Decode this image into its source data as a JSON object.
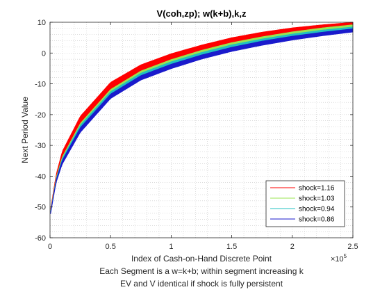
{
  "chart_data": {
    "type": "area",
    "title": "V(coh,zp); w(k+b),k,z",
    "xlabel_lines": [
      "Index of Cash-on-Hand Discrete Point",
      "Each Segment is a w=k+b; within segment increasing k",
      "EV and V identical if shock is fully persistent"
    ],
    "ylabel": "Next Period Value",
    "x_exponent_label": "×10",
    "x_exponent_power": "5",
    "xlim": [
      0,
      2.5
    ],
    "ylim": [
      -60,
      10
    ],
    "x_ticks": [
      0,
      0.5,
      1,
      1.5,
      2,
      2.5
    ],
    "x_tick_labels": [
      "0",
      "0.5",
      "1",
      "1.5",
      "2",
      "2.5"
    ],
    "y_ticks": [
      10,
      0,
      -10,
      -20,
      -30,
      -40,
      -50,
      -60
    ],
    "y_tick_labels": [
      "10",
      "0",
      "-10",
      "-20",
      "-30",
      "-40",
      "-50",
      "-60"
    ],
    "grid": "minor-dotted",
    "legend_position": "bottom-right",
    "series": [
      {
        "name": "shock=1.16",
        "color": "#ff0000",
        "x": [
          0.005,
          0.05,
          0.1,
          0.25,
          0.5,
          0.75,
          1.0,
          1.25,
          1.5,
          1.75,
          2.0,
          2.25,
          2.5
        ],
        "lower": [
          -51.5,
          -41.0,
          -34.5,
          -23.5,
          -12.5,
          -6.5,
          -2.8,
          0.3,
          2.8,
          4.8,
          6.4,
          7.8,
          8.8
        ],
        "upper": [
          -50.5,
          -39.5,
          -32.0,
          -20.5,
          -9.5,
          -3.8,
          -0.2,
          2.6,
          5.0,
          6.8,
          8.2,
          9.2,
          10.0
        ]
      },
      {
        "name": "shock=1.03",
        "color": "#99e550",
        "x": [
          0.005,
          0.05,
          0.1,
          0.25,
          0.5,
          0.75,
          1.0,
          1.25,
          1.5,
          1.75,
          2.0,
          2.25,
          2.5
        ],
        "lower": [
          -51.8,
          -41.5,
          -35.2,
          -24.5,
          -13.5,
          -7.5,
          -3.8,
          -0.7,
          1.8,
          3.8,
          5.5,
          6.9,
          8.0
        ],
        "upper": [
          -51.0,
          -40.5,
          -33.8,
          -22.8,
          -11.8,
          -5.8,
          -2.1,
          0.9,
          3.4,
          5.3,
          6.9,
          8.2,
          9.2
        ]
      },
      {
        "name": "shock=0.94",
        "color": "#20c0c0",
        "x": [
          0.005,
          0.05,
          0.1,
          0.25,
          0.5,
          0.75,
          1.0,
          1.25,
          1.5,
          1.75,
          2.0,
          2.25,
          2.5
        ],
        "lower": [
          -52.0,
          -41.8,
          -35.6,
          -25.0,
          -14.0,
          -8.0,
          -4.3,
          -1.2,
          1.3,
          3.3,
          5.0,
          6.4,
          7.5
        ],
        "upper": [
          -51.3,
          -40.9,
          -34.3,
          -23.4,
          -12.5,
          -6.5,
          -2.8,
          0.2,
          2.7,
          4.6,
          6.2,
          7.5,
          8.5
        ]
      },
      {
        "name": "shock=0.86",
        "color": "#1a1acc",
        "x": [
          0.005,
          0.05,
          0.1,
          0.25,
          0.5,
          0.75,
          1.0,
          1.25,
          1.5,
          1.75,
          2.0,
          2.25,
          2.5
        ],
        "lower": [
          -52.3,
          -42.2,
          -36.2,
          -25.8,
          -14.8,
          -8.8,
          -5.1,
          -2.0,
          0.5,
          2.5,
          4.2,
          5.6,
          6.8
        ],
        "upper": [
          -51.6,
          -41.3,
          -34.9,
          -24.2,
          -13.3,
          -7.3,
          -3.6,
          -0.6,
          1.9,
          3.9,
          5.5,
          6.8,
          7.9
        ]
      }
    ]
  }
}
